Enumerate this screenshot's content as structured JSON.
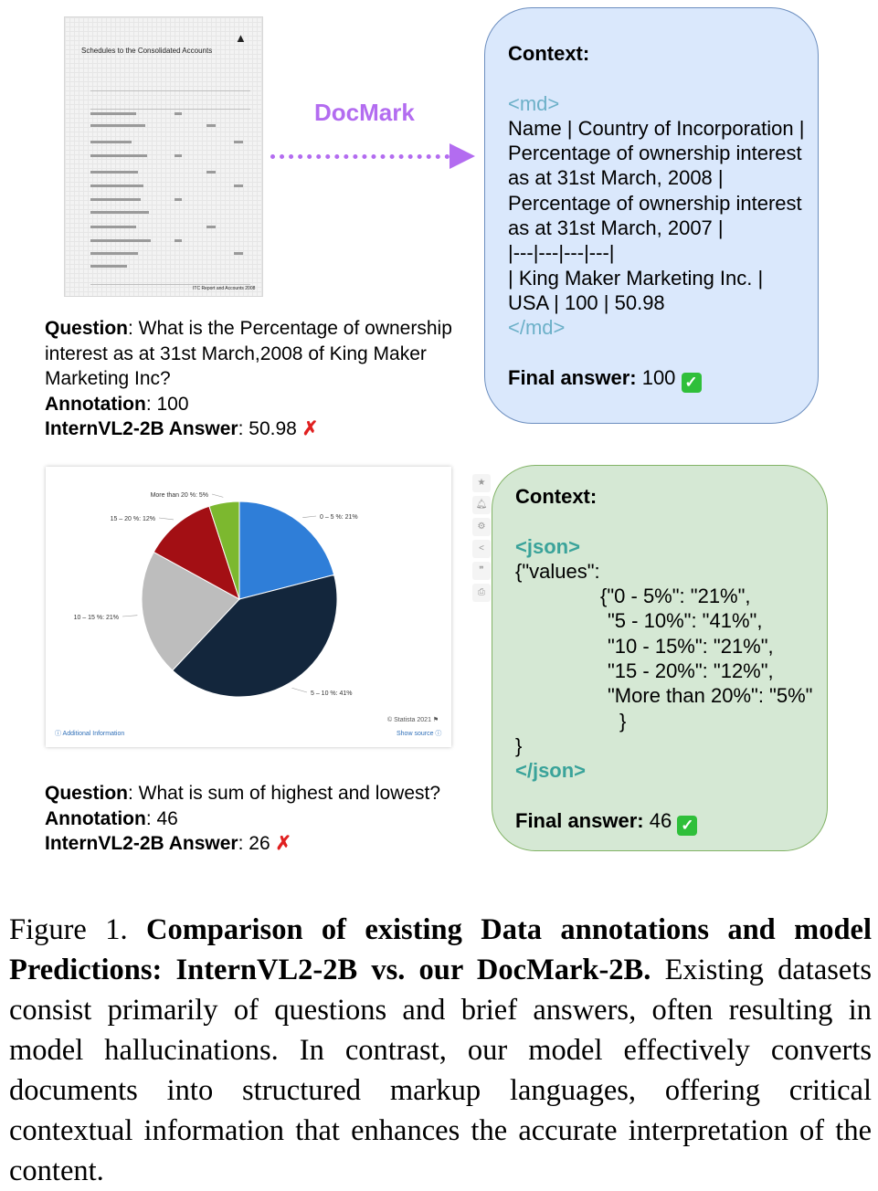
{
  "arrow_label": "DocMark",
  "example1": {
    "thumbnail": {
      "title": "Schedules to the Consolidated Accounts",
      "footer": "ITC Report and Accounts 2008"
    },
    "question_label": "Question",
    "question_text": ": What is the Percentage of ownership interest as at 31st March,2008 of King Maker Marketing Inc?",
    "annotation_label": "Annotation",
    "annotation_value": ": 100",
    "model_label": "InternVL2-2B Answer",
    "model_value": ": 50.98",
    "cross": "✗",
    "context": {
      "title": "Context:",
      "open_tag": "<md>",
      "lines": [
        "Name | Country of Incorporation |",
        "Percentage of ownership interest",
        "as at 31st March, 2008 |",
        "Percentage of ownership interest",
        "as at 31st March, 2007 |",
        "|---|---|---|---|",
        "| King Maker Marketing Inc. |",
        "USA | 100 | 50.98"
      ],
      "close_tag": "</md>",
      "final_label": "Final answer:",
      "final_value": " 100",
      "check": "✓"
    }
  },
  "example2": {
    "chart_data": {
      "type": "pie",
      "categories": [
        "0 - 5%",
        "5 - 10%",
        "10 - 15%",
        "15 - 20%",
        "More than 20%"
      ],
      "values": [
        21,
        41,
        21,
        12,
        5
      ],
      "labels": [
        "0 – 5 %: 21%",
        "5 – 10 %: 41%",
        "10 – 15 %: 21%",
        "15 – 20 %: 12%",
        "More than 20 %: 5%"
      ],
      "colors": [
        "#2f7ed8",
        "#13263c",
        "#bdbdbd",
        "#a30f14",
        "#7cb82f"
      ],
      "footer_left": "ⓘ Additional Information",
      "footer_right": "© Statista 2021 ⚑",
      "footer_right2": "Show source ⓘ"
    },
    "question_label": "Question",
    "question_text": ": What is sum of highest and lowest?",
    "annotation_label": "Annotation",
    "annotation_value": ": 46",
    "model_label": "InternVL2-2B Answer",
    "model_value": ": 26",
    "cross": "✗",
    "context": {
      "title": "Context:",
      "open_tag": "<json>",
      "lines": [
        "{\"values\":",
        "{\"0 - 5%\": \"21%\",",
        "\"5 - 10%\": \"41%\",",
        "\"10 - 15%\": \"21%\",",
        "\"15 - 20%\": \"12%\",",
        "\"More than 20%\": \"5%\"",
        "}",
        "}"
      ],
      "close_tag": "</json>",
      "final_label": "Final answer:",
      "final_value": " 46",
      "check": "✓"
    }
  },
  "caption": {
    "prefix": "Figure 1. ",
    "bold": "Comparison of existing Data annotations and model Predictions: InternVL2-2B vs.  our DocMark-2B.",
    "rest": " Existing datasets consist primarily of questions and brief answers, often resulting in model hallucinations.  In contrast, our model effectively converts documents into structured markup languages, offering critical contextual information that enhances the accurate interpretation of the content."
  }
}
